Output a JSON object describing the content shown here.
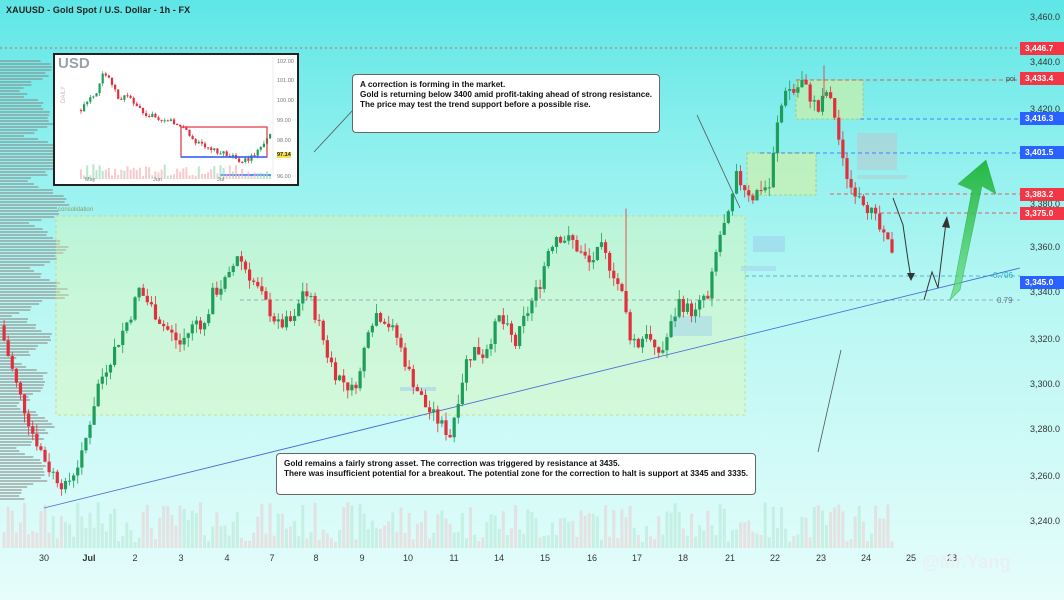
{
  "header": {
    "title": "XAUUSD - Gold Spot / U.S. Dollar - 1h - FX"
  },
  "colors": {
    "bull": "#1f9e5b",
    "bear": "#e0303d",
    "trendline": "#4a6fd8",
    "arrow_green": "#2fbf4a"
  },
  "notes": {
    "top": [
      "A correction is forming in the market.",
      "Gold is returning below 3400 amid profit-taking ahead of strong resistance.",
      "The price may test the trend support before a possible rise."
    ],
    "bottom": [
      "Gold remains a fairly strong asset. The correction was triggered by resistance at 3435.",
      "There was insufficient potential for a breakout. The potential zone for the correction to halt is support at 3345 and 3335."
    ]
  },
  "labels": {
    "consolidation": "consolidation",
    "poi": "poi",
    "fib_706": "0.706",
    "fib_79": "0.79"
  },
  "watermark": "@Mr.Yang",
  "price_tags": [
    {
      "text": "3,446.7",
      "color": "#f23645"
    },
    {
      "text": "3,433.4",
      "color": "#f23645"
    },
    {
      "text": "3,416.3",
      "color": "#2962ff"
    },
    {
      "text": "3,401.5",
      "color": "#2962ff"
    },
    {
      "text": "3,383.2",
      "color": "#f23645"
    },
    {
      "text": "3,375.0",
      "color": "#f23645"
    },
    {
      "text": "3,345.0",
      "color": "#2962ff"
    }
  ],
  "chart_data": {
    "type": "candlestick",
    "y_axis": {
      "ticks": [
        "3,460.0",
        "3,440.0",
        "3,420.0",
        "3,380.0",
        "3,360.0",
        "3,340.0",
        "3,320.0",
        "3,300.0",
        "3,280.0",
        "3,260.0",
        "3,240.0"
      ],
      "ylim": [
        3232,
        3466
      ]
    },
    "x_axis": {
      "ticks": [
        "30",
        "Jul",
        "2",
        "3",
        "4",
        "7",
        "8",
        "9",
        "10",
        "11",
        "14",
        "15",
        "16",
        "17",
        "18",
        "21",
        "22",
        "23",
        "24",
        "25",
        "28"
      ]
    },
    "key_levels": {
      "resistance": 3435,
      "poi": 3433.4,
      "fib_706": 3345,
      "fib_79": 3335,
      "support_zone": [
        3335,
        3345
      ]
    },
    "path": [
      [
        0,
        3330
      ],
      [
        4,
        3305
      ],
      [
        8,
        3285
      ],
      [
        12,
        3270
      ],
      [
        16,
        3262
      ],
      [
        20,
        3275
      ],
      [
        24,
        3305
      ],
      [
        28,
        3320
      ],
      [
        32,
        3335
      ],
      [
        34,
        3345
      ],
      [
        36,
        3340
      ],
      [
        40,
        3330
      ],
      [
        44,
        3322
      ],
      [
        48,
        3332
      ],
      [
        50,
        3330
      ],
      [
        52,
        3343
      ],
      [
        56,
        3350
      ],
      [
        58,
        3360
      ],
      [
        60,
        3354
      ],
      [
        64,
        3342
      ],
      [
        68,
        3330
      ],
      [
        72,
        3332
      ],
      [
        74,
        3345
      ],
      [
        76,
        3340
      ],
      [
        78,
        3330
      ],
      [
        80,
        3318
      ],
      [
        82,
        3310
      ],
      [
        86,
        3303
      ],
      [
        88,
        3310
      ],
      [
        90,
        3330
      ],
      [
        92,
        3335
      ],
      [
        94,
        3333
      ],
      [
        97,
        3325
      ],
      [
        100,
        3310
      ],
      [
        104,
        3296
      ],
      [
        108,
        3288
      ],
      [
        110,
        3284
      ],
      [
        112,
        3300
      ],
      [
        114,
        3315
      ],
      [
        116,
        3320
      ],
      [
        118,
        3318
      ],
      [
        120,
        3325
      ],
      [
        122,
        3333
      ],
      [
        124,
        3328
      ],
      [
        126,
        3322
      ],
      [
        128,
        3332
      ],
      [
        130,
        3340
      ],
      [
        132,
        3348
      ],
      [
        134,
        3362
      ],
      [
        136,
        3368
      ],
      [
        140,
        3365
      ],
      [
        142,
        3360
      ],
      [
        144,
        3356
      ],
      [
        147,
        3362
      ],
      [
        150,
        3352
      ],
      [
        152,
        3343
      ],
      [
        154,
        3326
      ],
      [
        156,
        3322
      ],
      [
        158,
        3328
      ],
      [
        160,
        3318
      ],
      [
        162,
        3320
      ],
      [
        164,
        3330
      ],
      [
        166,
        3340
      ],
      [
        168,
        3337
      ],
      [
        170,
        3335
      ],
      [
        172,
        3342
      ],
      [
        173,
        3340
      ],
      [
        175,
        3360
      ],
      [
        176,
        3368
      ],
      [
        178,
        3375
      ],
      [
        180,
        3392
      ],
      [
        182,
        3388
      ],
      [
        184,
        3384
      ],
      [
        186,
        3388
      ],
      [
        188,
        3388
      ],
      [
        190,
        3414
      ],
      [
        192,
        3430
      ],
      [
        194,
        3428
      ],
      [
        196,
        3432
      ],
      [
        198,
        3426
      ],
      [
        200,
        3420
      ],
      [
        202,
        3428
      ],
      [
        204,
        3418
      ],
      [
        206,
        3398
      ],
      [
        208,
        3388
      ],
      [
        210,
        3386
      ],
      [
        212,
        3380
      ],
      [
        214,
        3374
      ],
      [
        216,
        3366
      ],
      [
        218,
        3362
      ]
    ],
    "inset": {
      "title": "USD",
      "y_ticks": [
        "102.00",
        "101.00",
        "100.00",
        "99.00",
        "98.00",
        "97.14",
        "96.00"
      ],
      "x_ticks": [
        "May",
        "Jun",
        "Jul"
      ]
    }
  }
}
